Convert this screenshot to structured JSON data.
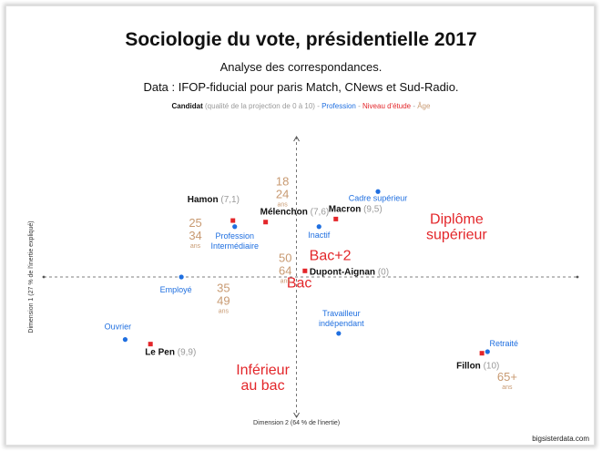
{
  "title": "Sociologie du vote, présidentielle 2017",
  "subtitle": "Analyse des correspondances.",
  "source": "Data : IFOP-fiducial pour paris Match, CNews et Sud-Radio.",
  "legend": {
    "candidat": "Candidat",
    "qualite": "(qualité de la projection de 0 à 10)",
    "sep1": " - ",
    "profession": "Profession",
    "sep2": " - ",
    "niveau": "Niveau d'étude",
    "sep3": " - ",
    "age": "Âge"
  },
  "credit": "bigsisterdata.com",
  "colors": {
    "candidate": "#111111",
    "quality": "#9a9a9a",
    "profession": "#1f6fe0",
    "education": "#e3262a",
    "age": "#c89a72",
    "axis": "#555555"
  },
  "chart_data": {
    "type": "scatter",
    "xlabel": "Dimension 2 (64 % de l'inertie)",
    "ylabel": "Dimension 1 (27 % de l'inertie expliqué)",
    "xlim": [
      -0.9,
      1.0
    ],
    "ylim": [
      -0.46,
      0.46
    ],
    "grid": false,
    "candidates": [
      {
        "name": "Hamon",
        "quality": "(7,1)",
        "x": -0.22,
        "y": 0.185
      },
      {
        "name": "Mélenchon",
        "quality": "(7,6)",
        "x": -0.11,
        "y": 0.18
      },
      {
        "name": "Macron",
        "quality": "(9,5)",
        "x": 0.14,
        "y": 0.19
      },
      {
        "name": "Dupont-Aignan",
        "quality": "(0)",
        "x": 0.03,
        "y": 0.02
      },
      {
        "name": "Le Pen",
        "quality": "(9,9)",
        "x": -0.52,
        "y": -0.22
      },
      {
        "name": "Fillon",
        "quality": "(10)",
        "x": 0.66,
        "y": -0.25
      }
    ],
    "professions": [
      {
        "lines": [
          "Cadre supérieur"
        ],
        "x": 0.29,
        "y": 0.28
      },
      {
        "lines": [
          "Inactif"
        ],
        "x": 0.08,
        "y": 0.165
      },
      {
        "lines": [
          "Profession",
          "Intermédiaire"
        ],
        "x": -0.22,
        "y": 0.165
      },
      {
        "lines": [
          "Employé"
        ],
        "x": -0.41,
        "y": 0.0
      },
      {
        "lines": [
          "Ouvrier"
        ],
        "x": -0.61,
        "y": -0.205
      },
      {
        "lines": [
          "Travailleur",
          "indépendant"
        ],
        "x": 0.15,
        "y": -0.185
      },
      {
        "lines": [
          "Retraité"
        ],
        "x": 0.68,
        "y": -0.245
      }
    ],
    "education": [
      {
        "lines": [
          "Diplôme",
          "supérieur"
        ],
        "x": 0.57,
        "y": 0.175
      },
      {
        "lines": [
          "Bac+2"
        ],
        "x": 0.12,
        "y": 0.055
      },
      {
        "lines": [
          "Bac"
        ],
        "x": 0.01,
        "y": -0.035
      },
      {
        "lines": [
          "Inférieur",
          "au bac"
        ],
        "x": -0.12,
        "y": -0.32
      }
    ],
    "ages": [
      {
        "top": "18",
        "mid": "24",
        "unit": "ans",
        "x": -0.05,
        "y": 0.3
      },
      {
        "top": "25",
        "mid": "34",
        "unit": "ans",
        "x": -0.36,
        "y": 0.165
      },
      {
        "top": "50",
        "mid": "64",
        "unit": "ans",
        "x": -0.04,
        "y": 0.05
      },
      {
        "top": "35",
        "mid": "49",
        "unit": "ans",
        "x": -0.26,
        "y": -0.05
      },
      {
        "top": "65+",
        "mid": "",
        "unit": "ans",
        "x": 0.75,
        "y": -0.34
      }
    ]
  }
}
